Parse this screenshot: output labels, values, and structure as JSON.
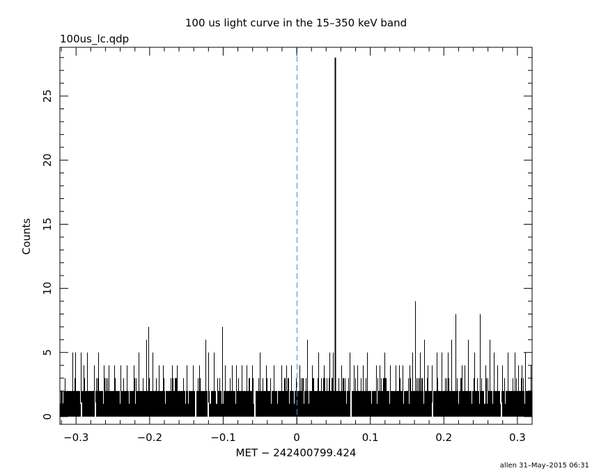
{
  "chart_data": {
    "type": "bar",
    "title": "100 us light curve in the 15–350 keV band",
    "file_label": "100us_lc.qdp",
    "xlabel": "MET − 242400799.424",
    "ylabel": "Counts",
    "footer": "allen 31–May–2015 06:31",
    "xlim": [
      -0.322,
      0.32
    ],
    "ylim": [
      -0.6,
      28.8
    ],
    "x_ticks": [
      -0.3,
      -0.2,
      -0.1,
      0,
      0.1,
      0.2,
      0.3
    ],
    "x_tick_labels": [
      "−0.3",
      "−0.2",
      "−0.1",
      "0",
      "0.1",
      "0.2",
      "0.3"
    ],
    "y_ticks": [
      0,
      5,
      10,
      15,
      20,
      25
    ],
    "y_tick_labels": [
      "0",
      "5",
      "10",
      "15",
      "20",
      "25"
    ],
    "bin_width": 0.0001,
    "reference_line": {
      "x": 0,
      "style": "dashed",
      "color": "#1f9fbf"
    },
    "background": {
      "level_low": 1,
      "level_high": 2,
      "spread_max": 3
    },
    "series": [
      {
        "values": [
          {
            "x": -0.305,
            "y": 5
          },
          {
            "x": -0.301,
            "y": 5
          },
          {
            "x": -0.294,
            "y": 5
          },
          {
            "x": -0.285,
            "y": 5
          },
          {
            "x": -0.276,
            "y": 4
          },
          {
            "x": -0.27,
            "y": 5
          },
          {
            "x": -0.262,
            "y": 4
          },
          {
            "x": -0.248,
            "y": 4
          },
          {
            "x": -0.231,
            "y": 4
          },
          {
            "x": -0.215,
            "y": 5
          },
          {
            "x": -0.205,
            "y": 6
          },
          {
            "x": -0.202,
            "y": 7
          },
          {
            "x": -0.196,
            "y": 5
          },
          {
            "x": -0.182,
            "y": 4
          },
          {
            "x": -0.17,
            "y": 4
          },
          {
            "x": -0.163,
            "y": 4
          },
          {
            "x": -0.141,
            "y": 4
          },
          {
            "x": -0.124,
            "y": 6
          },
          {
            "x": -0.12,
            "y": 5
          },
          {
            "x": -0.113,
            "y": 5
          },
          {
            "x": -0.101,
            "y": 7
          },
          {
            "x": -0.098,
            "y": 4
          },
          {
            "x": -0.088,
            "y": 4
          },
          {
            "x": -0.075,
            "y": 4
          },
          {
            "x": -0.061,
            "y": 4
          },
          {
            "x": -0.05,
            "y": 5
          },
          {
            "x": -0.031,
            "y": 4
          },
          {
            "x": -0.021,
            "y": 4
          },
          {
            "x": -0.008,
            "y": 4
          },
          {
            "x": 0.004,
            "y": 4
          },
          {
            "x": 0.014,
            "y": 6
          },
          {
            "x": 0.021,
            "y": 4
          },
          {
            "x": 0.029,
            "y": 5
          },
          {
            "x": 0.037,
            "y": 4
          },
          {
            "x": 0.044,
            "y": 5
          },
          {
            "x": 0.049,
            "y": 5
          },
          {
            "x": 0.052,
            "y": 28
          },
          {
            "x": 0.061,
            "y": 4
          },
          {
            "x": 0.072,
            "y": 5
          },
          {
            "x": 0.082,
            "y": 4
          },
          {
            "x": 0.096,
            "y": 5
          },
          {
            "x": 0.108,
            "y": 4
          },
          {
            "x": 0.119,
            "y": 5
          },
          {
            "x": 0.134,
            "y": 4
          },
          {
            "x": 0.144,
            "y": 4
          },
          {
            "x": 0.153,
            "y": 4
          },
          {
            "x": 0.157,
            "y": 5
          },
          {
            "x": 0.161,
            "y": 9
          },
          {
            "x": 0.168,
            "y": 5
          },
          {
            "x": 0.173,
            "y": 6
          },
          {
            "x": 0.184,
            "y": 4
          },
          {
            "x": 0.19,
            "y": 5
          },
          {
            "x": 0.197,
            "y": 5
          },
          {
            "x": 0.205,
            "y": 5
          },
          {
            "x": 0.21,
            "y": 6
          },
          {
            "x": 0.216,
            "y": 8
          },
          {
            "x": 0.224,
            "y": 4
          },
          {
            "x": 0.233,
            "y": 6
          },
          {
            "x": 0.241,
            "y": 5
          },
          {
            "x": 0.249,
            "y": 8
          },
          {
            "x": 0.257,
            "y": 4
          },
          {
            "x": 0.262,
            "y": 6
          },
          {
            "x": 0.268,
            "y": 5
          },
          {
            "x": 0.279,
            "y": 4
          },
          {
            "x": 0.287,
            "y": 5
          },
          {
            "x": 0.296,
            "y": 5
          },
          {
            "x": 0.306,
            "y": 4
          },
          {
            "x": 0.311,
            "y": 5
          },
          {
            "x": 0.318,
            "y": 4
          },
          {
            "x": -0.29,
            "y": 4
          },
          {
            "x": -0.256,
            "y": 4
          },
          {
            "x": -0.24,
            "y": 4
          },
          {
            "x": -0.222,
            "y": 4
          },
          {
            "x": -0.188,
            "y": 4
          },
          {
            "x": -0.15,
            "y": 4
          },
          {
            "x": -0.133,
            "y": 4
          },
          {
            "x": -0.082,
            "y": 4
          },
          {
            "x": -0.068,
            "y": 4
          },
          {
            "x": -0.042,
            "y": 4
          },
          {
            "x": -0.014,
            "y": 4
          },
          {
            "x": 0.078,
            "y": 4
          },
          {
            "x": 0.09,
            "y": 4
          },
          {
            "x": 0.113,
            "y": 4
          },
          {
            "x": 0.127,
            "y": 4
          },
          {
            "x": 0.139,
            "y": 4
          },
          {
            "x": 0.178,
            "y": 4
          },
          {
            "x": 0.228,
            "y": 4
          },
          {
            "x": 0.273,
            "y": 4
          },
          {
            "x": 0.301,
            "y": 4
          }
        ]
      }
    ],
    "gaps": [
      -0.294,
      -0.275,
      -0.138,
      -0.121,
      -0.058,
      0.073,
      0.184,
      0.277
    ]
  }
}
